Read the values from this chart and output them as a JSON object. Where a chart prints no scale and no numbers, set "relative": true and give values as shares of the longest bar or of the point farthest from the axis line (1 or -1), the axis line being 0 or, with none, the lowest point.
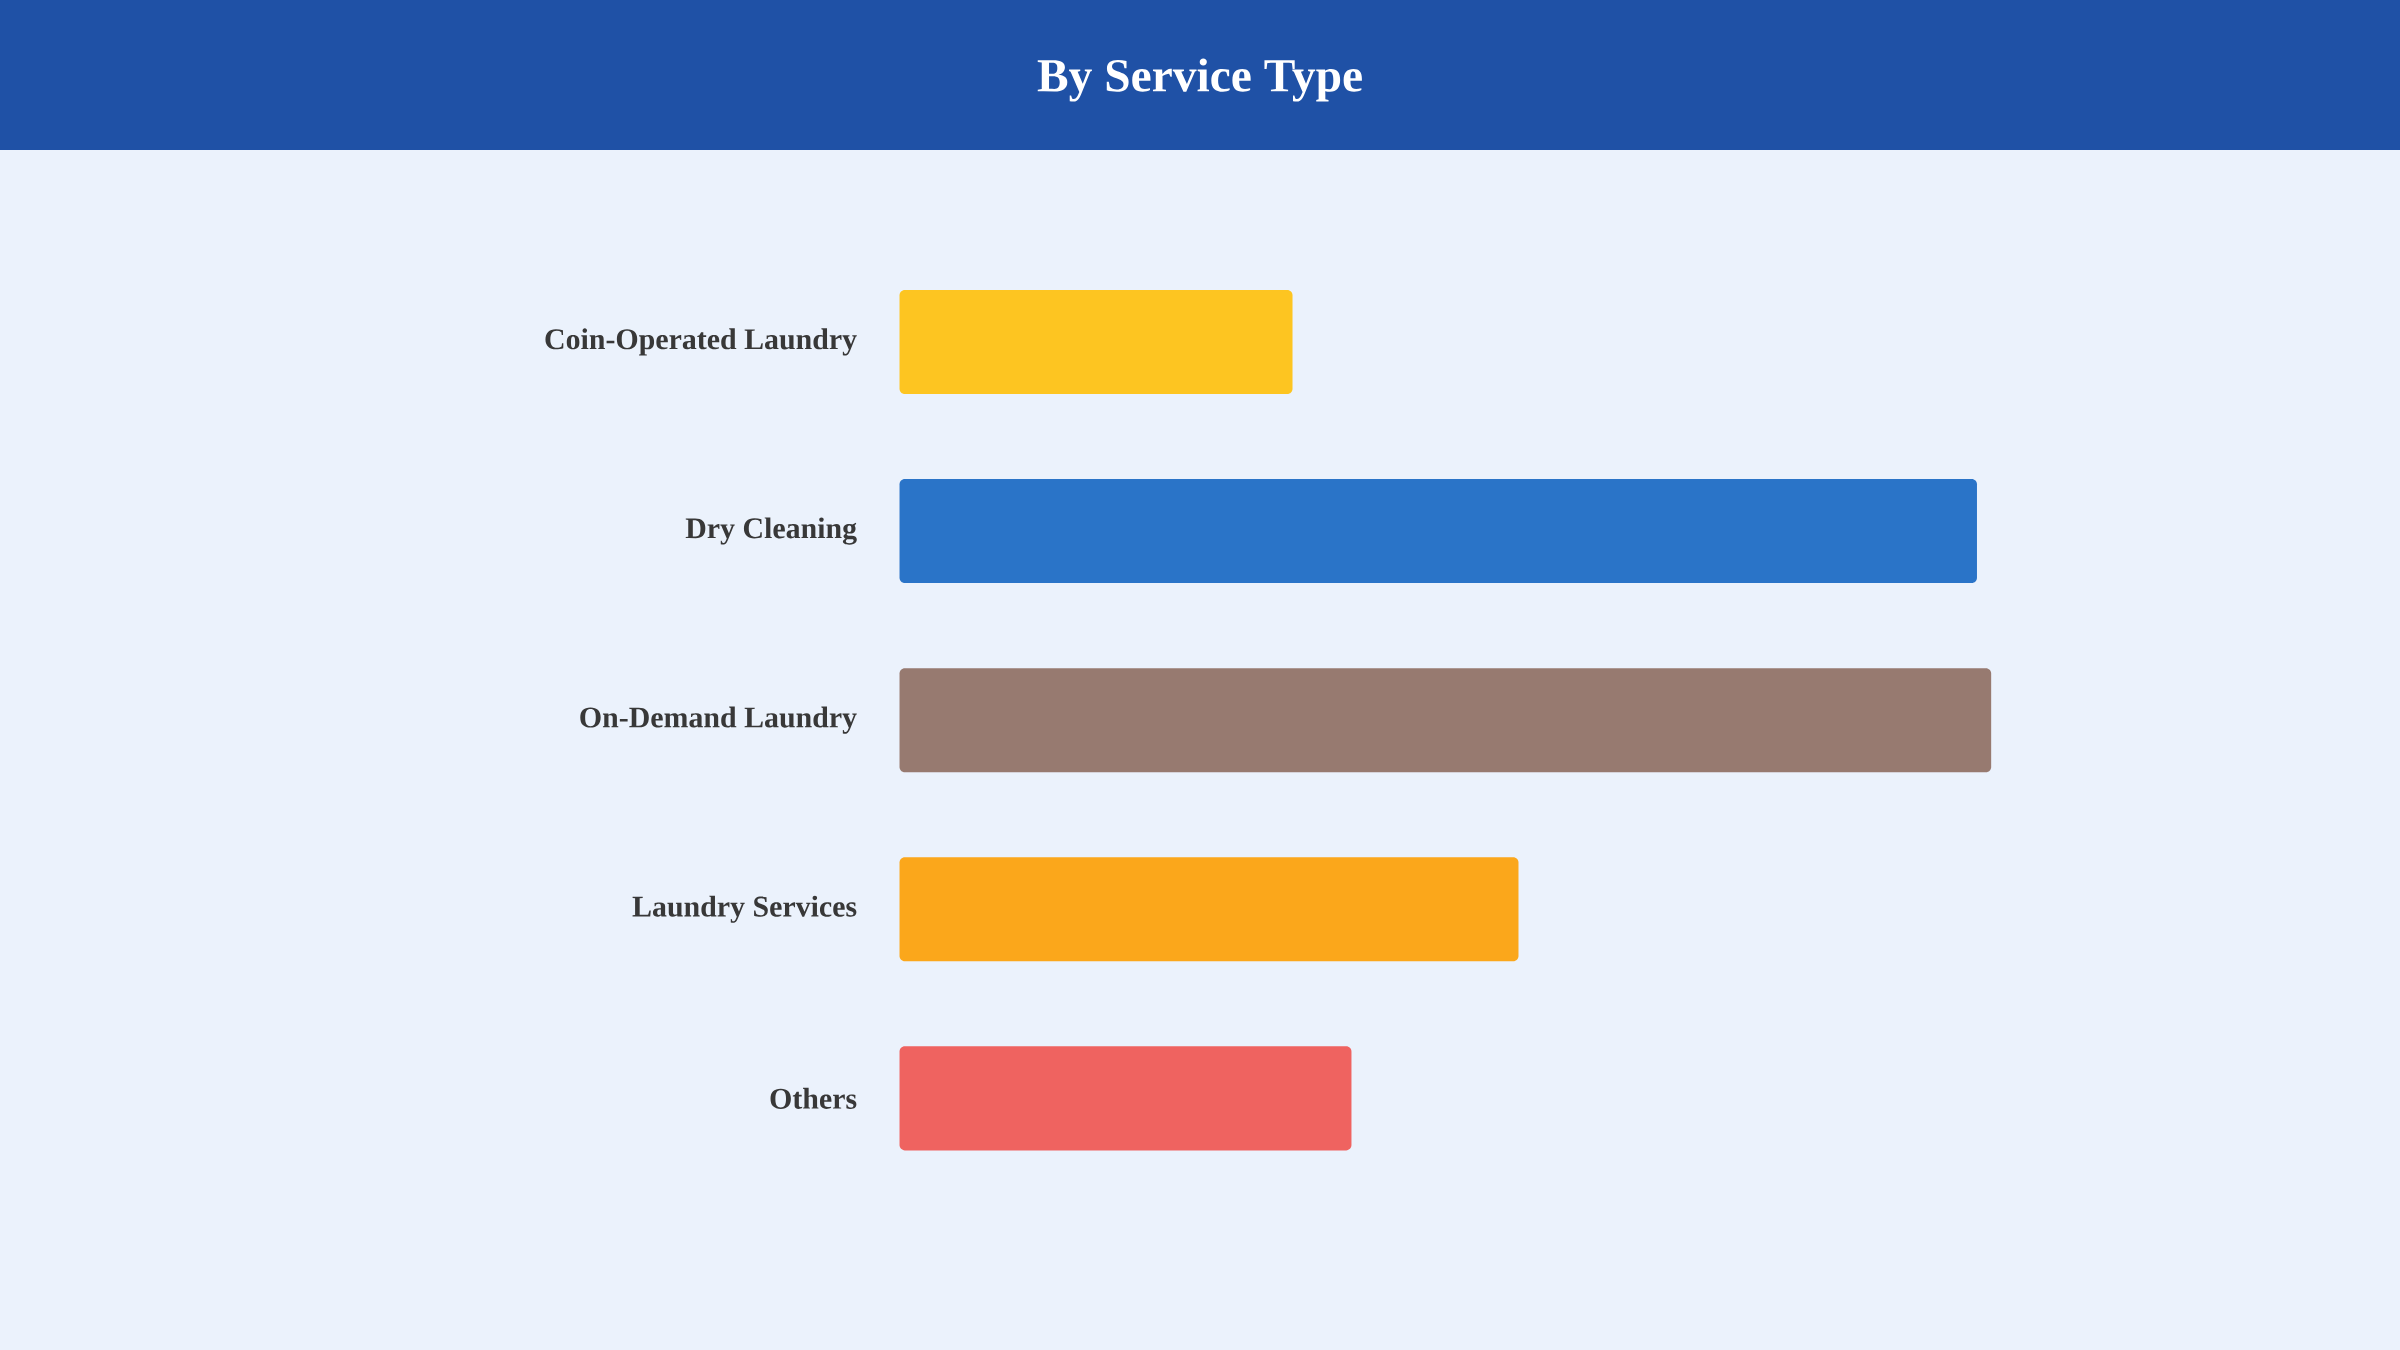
{
  "chart_data": {
    "type": "bar",
    "title": "By Service Type",
    "orientation": "horizontal",
    "relative": true,
    "categories": [
      "Coin-Operated Laundry",
      "Dry Cleaning",
      "On-Demand Laundry",
      "Laundry Services",
      "Others"
    ],
    "values": [
      0.36,
      0.987,
      1,
      0.567,
      0.414
    ],
    "colors": [
      "#fdc521",
      "#2a74c8",
      "#977a70",
      "#fba71b",
      "#ef6360"
    ]
  }
}
